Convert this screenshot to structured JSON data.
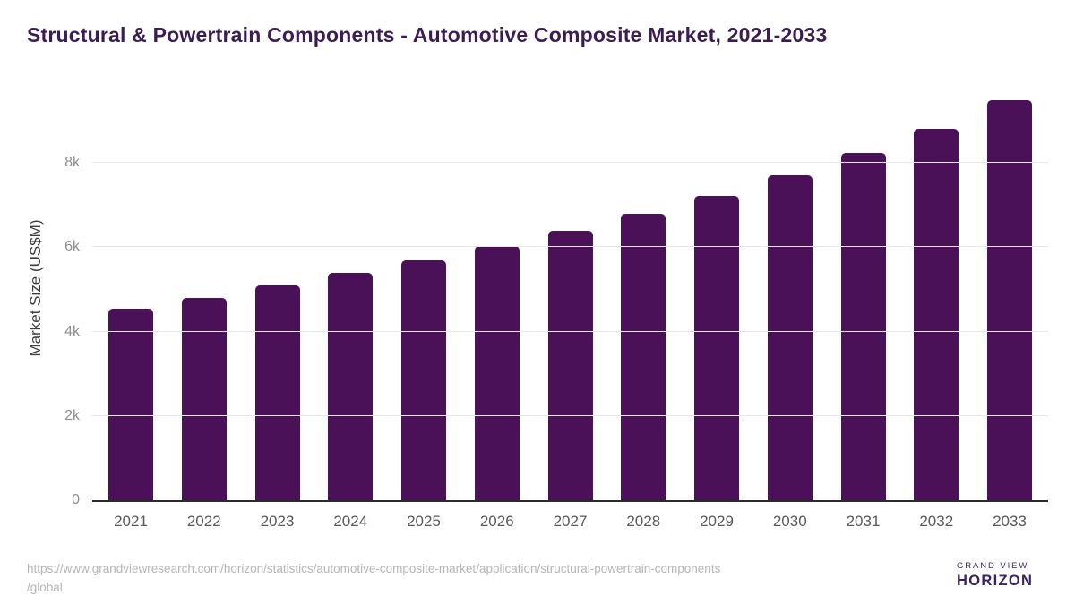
{
  "header": {
    "title": "Structural & Powertrain Components - Automotive Composite Market, 2021-2033"
  },
  "chart_data": {
    "type": "bar",
    "title": "Structural & Powertrain Components - Automotive Composite Market, 2021-2033",
    "categories": [
      "2021",
      "2022",
      "2023",
      "2024",
      "2025",
      "2026",
      "2027",
      "2028",
      "2029",
      "2030",
      "2031",
      "2032",
      "2033"
    ],
    "values": [
      4550,
      4800,
      5090,
      5400,
      5690,
      6030,
      6390,
      6790,
      7220,
      7700,
      8240,
      8820,
      9500
    ],
    "xlabel": "",
    "ylabel": "Market Size (US$M)",
    "ylim": [
      0,
      10000
    ],
    "yticks": [
      {
        "value": 0,
        "label": "0"
      },
      {
        "value": 2000,
        "label": "2k"
      },
      {
        "value": 4000,
        "label": "4k"
      },
      {
        "value": 6000,
        "label": "6k"
      },
      {
        "value": 8000,
        "label": "8k"
      }
    ],
    "grid": "horizontal",
    "legend": false,
    "bar_color": "#4a1158"
  },
  "footer": {
    "source_url_lines": [
      "https://www.grandviewresearch.com/horizon/statistics/automotive-composite-market/application/structural-powertrain-components",
      "/global"
    ],
    "logo": {
      "brand_top": "GRAND VIEW",
      "brand_bottom": "HORIZON",
      "icon": "sun-horizon-icon",
      "dark_color": "#2d1a45",
      "blue_color": "#5ec1ef"
    }
  },
  "colors": {
    "title_text": "#3b1d54",
    "bar": "#4a1158",
    "gridline": "#e7e7e7",
    "axis_line": "#2b2b2b",
    "y_tick_text": "#8f8f8f",
    "x_tick_text": "#595959",
    "source_text": "#b5b5b5"
  }
}
